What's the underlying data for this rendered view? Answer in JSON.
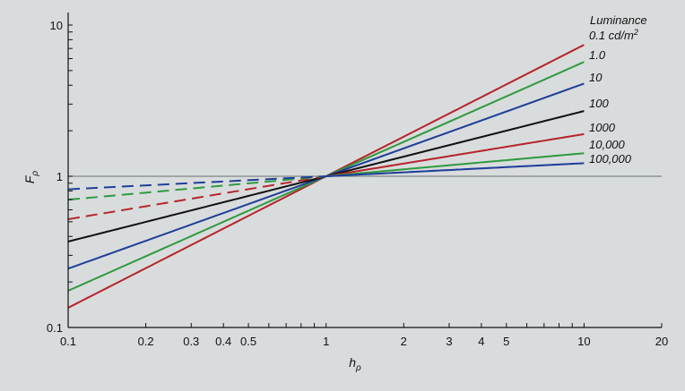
{
  "chart_data": {
    "type": "line",
    "title": "",
    "xlabel": "h",
    "xlabel_sub": "ρ",
    "ylabel": "F",
    "ylabel_sub": "ρ",
    "xscale": "log",
    "yscale": "log",
    "xlim": [
      0.1,
      20
    ],
    "ylim": [
      0.1,
      10
    ],
    "xticks": [
      {
        "value": 0.1,
        "label": "0.1"
      },
      {
        "value": 0.2,
        "label": "0.2"
      },
      {
        "value": 0.3,
        "label": "0.3"
      },
      {
        "value": 0.4,
        "label": "0.4"
      },
      {
        "value": 0.5,
        "label": "0.5"
      },
      {
        "value": 1,
        "label": "1"
      },
      {
        "value": 2,
        "label": "2"
      },
      {
        "value": 3,
        "label": "3"
      },
      {
        "value": 4,
        "label": "4"
      },
      {
        "value": 5,
        "label": "5"
      },
      {
        "value": 10,
        "label": "10"
      },
      {
        "value": 20,
        "label": "20"
      }
    ],
    "yticks": [
      {
        "value": 0.1,
        "label": "0.1"
      },
      {
        "value": 1,
        "label": "1"
      },
      {
        "value": 10,
        "label": "10"
      }
    ],
    "reference_line": {
      "y": 1,
      "color": "#7f8586"
    },
    "legend_title": "Luminance",
    "legend_placement": "right",
    "series": [
      {
        "name": "0.1 cd/m²",
        "color": "#b5252b",
        "dash": "solid",
        "x": [
          0.1,
          1,
          10
        ],
        "y": [
          0.135,
          1,
          7.4
        ]
      },
      {
        "name": "1.0",
        "color": "#2f9a3f",
        "dash": "solid",
        "x": [
          0.1,
          1,
          10
        ],
        "y": [
          0.175,
          1,
          5.7
        ]
      },
      {
        "name": "10",
        "color": "#1e3f98",
        "dash": "solid",
        "x": [
          0.1,
          1,
          10
        ],
        "y": [
          0.245,
          1,
          4.1
        ]
      },
      {
        "name": "100",
        "color": "#111111",
        "dash": "solid",
        "x": [
          0.1,
          1,
          10
        ],
        "y": [
          0.37,
          1,
          2.7
        ]
      },
      {
        "name": "1000",
        "color": "#b5252b",
        "dash": "longdash",
        "x": [
          0.1,
          1,
          10
        ],
        "y": [
          0.52,
          1,
          1.9
        ]
      },
      {
        "name": "10,000",
        "color": "#2f9a3f",
        "dash": "longdash",
        "x": [
          0.1,
          1,
          10
        ],
        "y": [
          0.7,
          1,
          1.42
        ]
      },
      {
        "name": "100,000",
        "color": "#1e3f98",
        "dash": "longdash",
        "x": [
          0.1,
          1,
          10
        ],
        "y": [
          0.82,
          1,
          1.22
        ]
      }
    ]
  }
}
